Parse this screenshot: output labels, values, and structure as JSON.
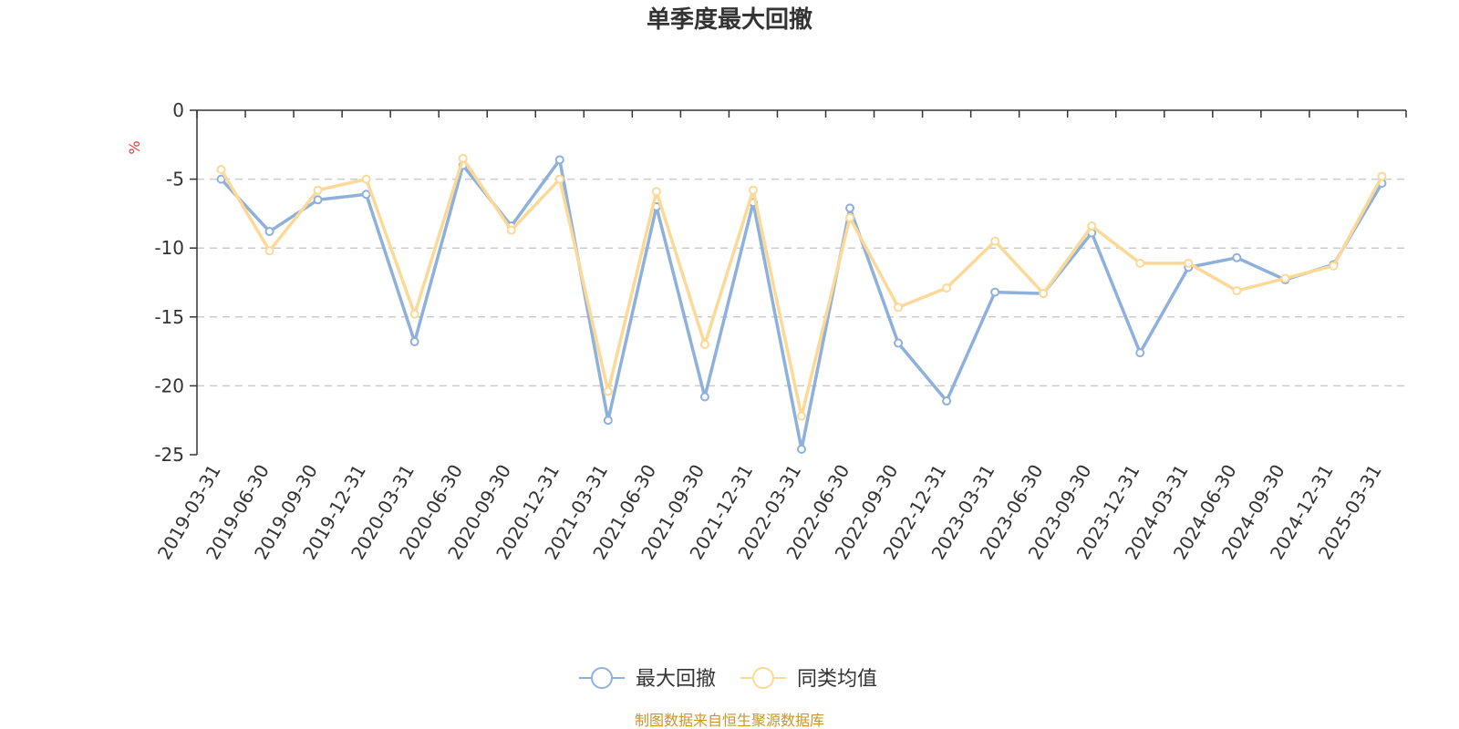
{
  "chart_data": {
    "type": "line",
    "title": "单季度最大回撤",
    "ylabel": "%",
    "ylim": [
      -25,
      0
    ],
    "yticks": [
      "0",
      "-5",
      "-10",
      "-15",
      "-20",
      "-25"
    ],
    "grid": true,
    "legend_position": "bottom-center",
    "categories": [
      "2019-03-31",
      "2019-06-30",
      "2019-09-30",
      "2019-12-31",
      "2020-03-31",
      "2020-06-30",
      "2020-09-30",
      "2020-12-31",
      "2021-03-31",
      "2021-06-30",
      "2021-09-30",
      "2021-12-31",
      "2022-03-31",
      "2022-06-30",
      "2022-09-30",
      "2022-12-31",
      "2023-03-31",
      "2023-06-30",
      "2023-09-30",
      "2023-12-31",
      "2024-03-31",
      "2024-06-30",
      "2024-09-30",
      "2024-12-31",
      "2025-03-31"
    ],
    "series": [
      {
        "name": "最大回撤",
        "color": "#8eb0dd",
        "values": [
          -5.0,
          -8.8,
          -6.5,
          -6.1,
          -16.8,
          -4.0,
          -8.4,
          -3.6,
          -22.5,
          -7.0,
          -20.8,
          -6.7,
          -24.6,
          -7.1,
          -16.9,
          -21.1,
          -13.2,
          -13.3,
          -8.9,
          -17.6,
          -11.4,
          -10.7,
          -12.3,
          -11.2,
          -5.3
        ]
      },
      {
        "name": "同类均值",
        "color": "#fcd996",
        "values": [
          -4.3,
          -10.2,
          -5.8,
          -5.0,
          -14.8,
          -3.5,
          -8.7,
          -5.0,
          -20.4,
          -5.9,
          -17.0,
          -5.8,
          -22.2,
          -7.8,
          -14.3,
          -12.9,
          -9.5,
          -13.3,
          -8.4,
          -11.1,
          -11.1,
          -13.1,
          -12.2,
          -11.3,
          -4.8
        ]
      }
    ],
    "source": "制图数据来自恒生聚源数据库"
  }
}
